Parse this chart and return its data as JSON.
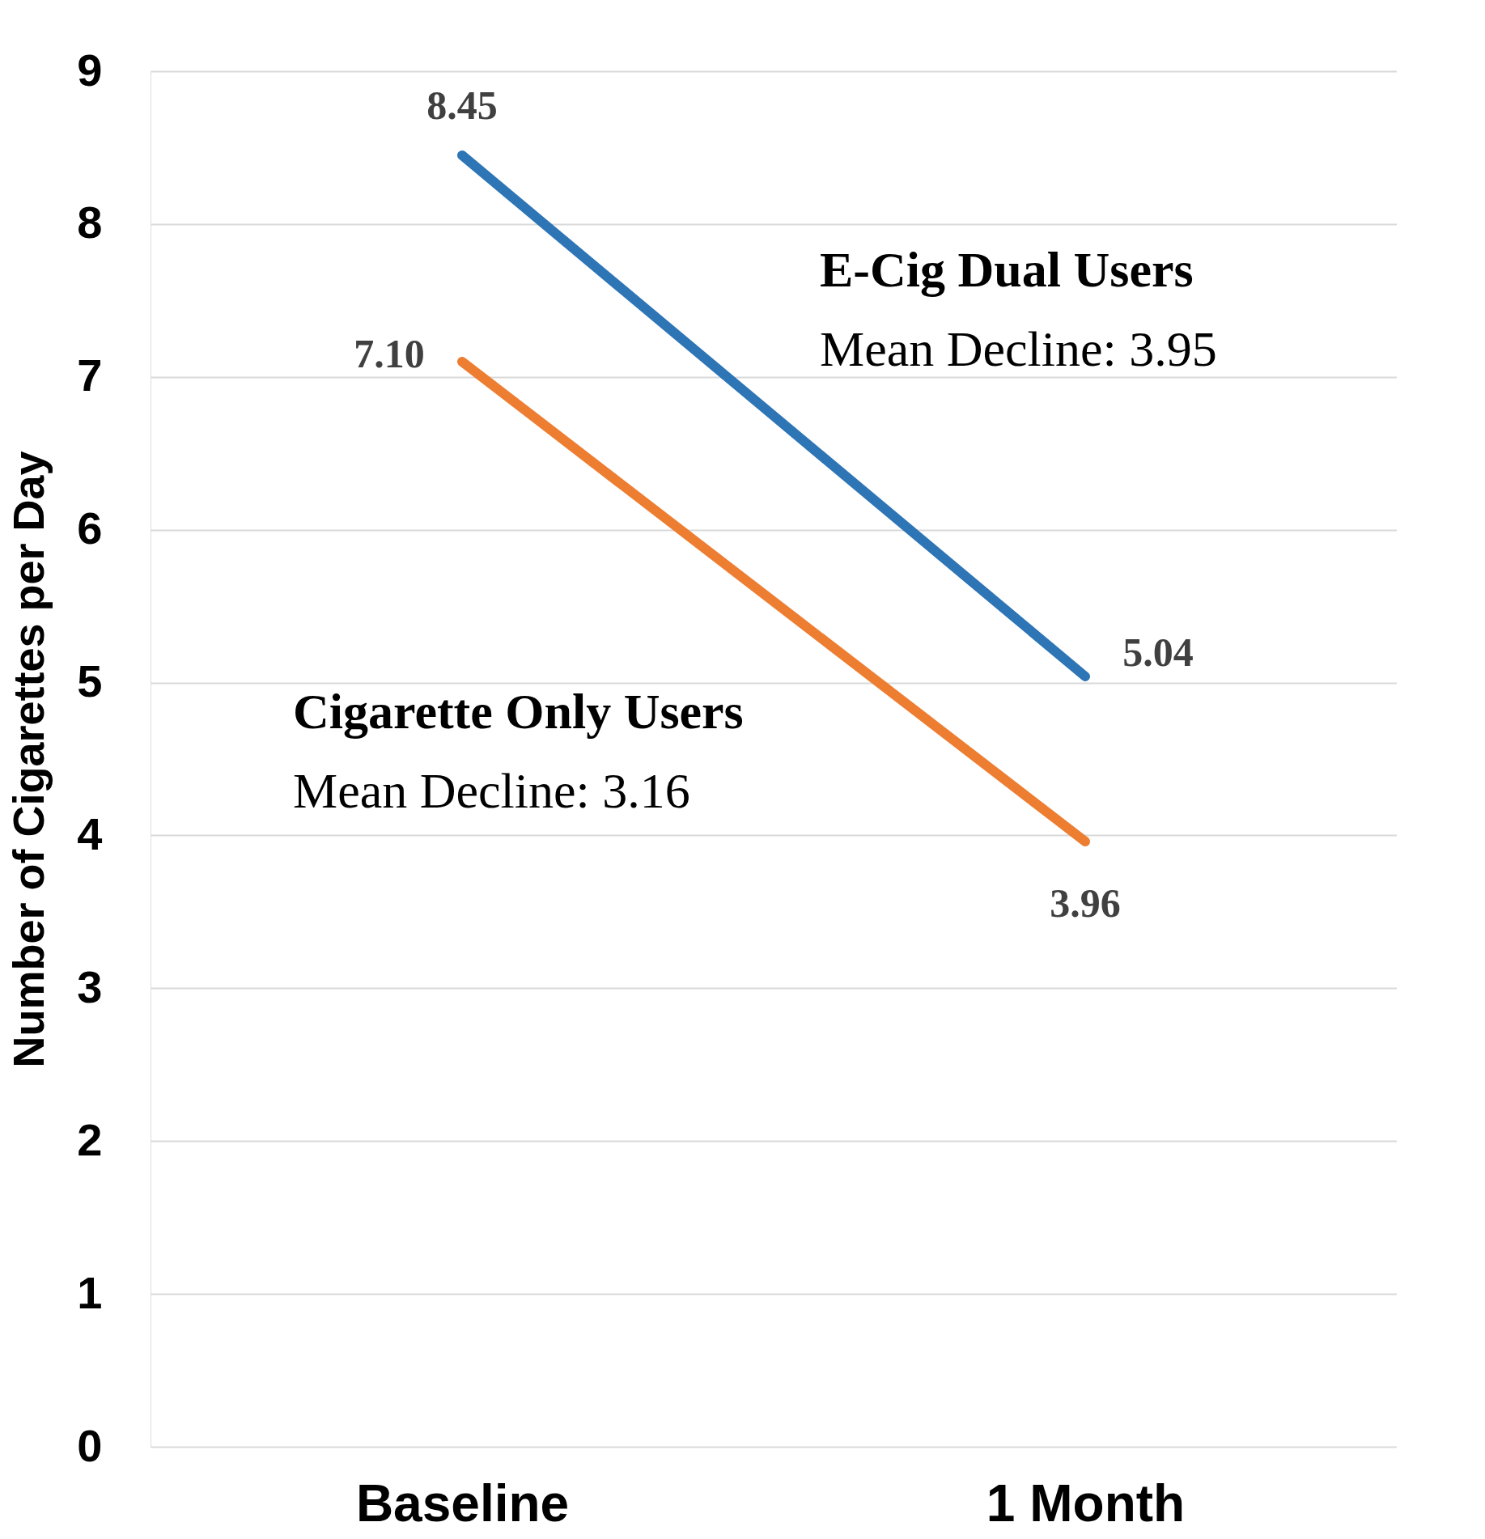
{
  "chart_data": {
    "type": "line",
    "ylabel": "Number of Cigarettes per Day",
    "categories": [
      "Baseline",
      "1 Month"
    ],
    "series": [
      {
        "name": "E-Cig Dual Users",
        "color": "#2e75b6",
        "values": [
          8.45,
          5.04
        ],
        "value_labels": [
          "8.45",
          "5.04"
        ]
      },
      {
        "name": "Cigarette Only Users",
        "color": "#ed7d31",
        "values": [
          7.1,
          3.96
        ],
        "value_labels": [
          "7.10",
          "3.96"
        ]
      }
    ],
    "annotations": [
      "Mean Decline: 3.95",
      "Mean Decline: 3.16"
    ],
    "ylim": [
      0,
      9
    ],
    "yticks": [
      0,
      1,
      2,
      3,
      4,
      5,
      6,
      7,
      8,
      9
    ],
    "grid": "y",
    "marker": "none",
    "line_style": "solid"
  }
}
